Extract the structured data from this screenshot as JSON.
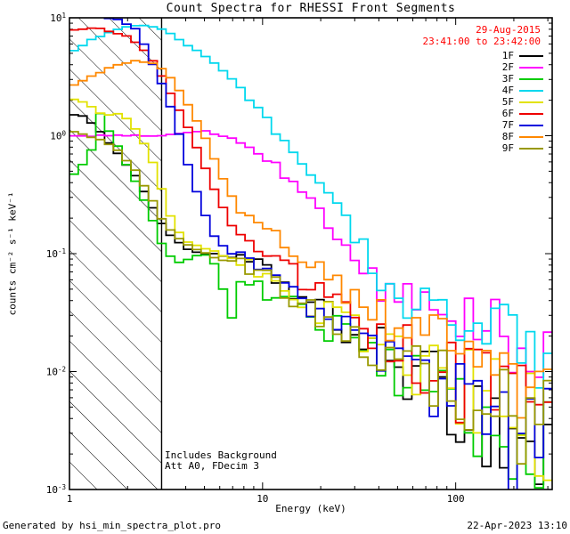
{
  "title": "Count Spectra for RHESSI Front Segments",
  "annotations": {
    "date": "29-Aug-2015",
    "time_range": "23:41:00 to 23:42:00",
    "note1": "Includes Background",
    "note2": "Att A0, FDecim 3",
    "color": "#ff0000"
  },
  "footer": {
    "left": "Generated by hsi_min_spectra_plot.pro",
    "right": "22-Apr-2023 13:10"
  },
  "chart_data": {
    "type": "line",
    "subtype": "step-histogram-spectra",
    "x_scale": "log",
    "y_scale": "log",
    "title": "Count Spectra for RHESSI Front Segments",
    "xlabel": "Energy (keV)",
    "ylabel": "counts cm⁻² s⁻¹ keV⁻¹",
    "xlim": [
      1,
      316
    ],
    "ylim": [
      0.001,
      10
    ],
    "grid": false,
    "legend_position": "top-right",
    "x_ticks": [
      {
        "value": 1,
        "label": "1"
      },
      {
        "value": 10,
        "label": "10"
      },
      {
        "value": 100,
        "label": "100"
      }
    ],
    "y_ticks": [
      {
        "value": 10,
        "mantissa": "10",
        "exp": "1"
      },
      {
        "value": 1,
        "mantissa": "10",
        "exp": "0"
      },
      {
        "value": 0.1,
        "mantissa": "10",
        "exp": "-1"
      },
      {
        "value": 0.01,
        "mantissa": "10",
        "exp": "-2"
      },
      {
        "value": 0.001,
        "mantissa": "10",
        "exp": "-3"
      }
    ],
    "hatch_region": {
      "x_min": 1,
      "x_max": 3
    },
    "noise": {
      "bins_per_decade": 22,
      "smooth_below_keV": 7,
      "dex_smooth": 0.02,
      "dex_start": 0.08,
      "dex_end": 0.45
    },
    "series": [
      {
        "name": "1F",
        "color": "#000000",
        "anchors": [
          [
            1,
            1.55
          ],
          [
            1.2,
            1.45
          ],
          [
            1.5,
            1.0
          ],
          [
            1.8,
            0.7
          ],
          [
            2.2,
            0.45
          ],
          [
            2.6,
            0.28
          ],
          [
            3,
            0.18
          ],
          [
            3.5,
            0.13
          ],
          [
            4,
            0.11
          ],
          [
            5,
            0.1
          ],
          [
            6,
            0.1
          ],
          [
            7,
            0.09
          ],
          [
            8,
            0.09
          ],
          [
            10,
            0.075
          ],
          [
            12,
            0.06
          ],
          [
            15,
            0.045
          ],
          [
            20,
            0.032
          ],
          [
            30,
            0.02
          ],
          [
            50,
            0.012
          ],
          [
            80,
            0.007
          ],
          [
            120,
            0.0045
          ],
          [
            200,
            0.003
          ],
          [
            300,
            0.0018
          ]
        ]
      },
      {
        "name": "2F",
        "color": "#ff00ff",
        "anchors": [
          [
            1,
            1.0
          ],
          [
            2,
            1.0
          ],
          [
            3,
            1.0
          ],
          [
            4,
            1.05
          ],
          [
            5,
            1.1
          ],
          [
            6,
            1.0
          ],
          [
            7,
            0.95
          ],
          [
            8,
            0.85
          ],
          [
            10,
            0.68
          ],
          [
            12,
            0.52
          ],
          [
            15,
            0.38
          ],
          [
            20,
            0.23
          ],
          [
            25,
            0.15
          ],
          [
            30,
            0.095
          ],
          [
            35,
            0.07
          ],
          [
            40,
            0.055
          ],
          [
            50,
            0.042
          ],
          [
            60,
            0.04
          ],
          [
            80,
            0.036
          ],
          [
            100,
            0.032
          ],
          [
            150,
            0.024
          ],
          [
            200,
            0.015
          ],
          [
            300,
            0.008
          ]
        ]
      },
      {
        "name": "3F",
        "color": "#00cc00",
        "anchors": [
          [
            1,
            0.42
          ],
          [
            1.15,
            0.55
          ],
          [
            1.3,
            0.75
          ],
          [
            1.45,
            1.6
          ],
          [
            1.6,
            1.1
          ],
          [
            1.8,
            0.8
          ],
          [
            2,
            0.55
          ],
          [
            2.3,
            0.35
          ],
          [
            2.6,
            0.22
          ],
          [
            2.9,
            0.14
          ],
          [
            3.2,
            0.1
          ],
          [
            3.6,
            0.085
          ],
          [
            4,
            0.09
          ],
          [
            5,
            0.1
          ],
          [
            6,
            0.075
          ],
          [
            6.5,
            0.035
          ],
          [
            7,
            0.028
          ],
          [
            7.5,
            0.05
          ],
          [
            8,
            0.055
          ],
          [
            10,
            0.05
          ],
          [
            12,
            0.042
          ],
          [
            15,
            0.035
          ],
          [
            20,
            0.026
          ],
          [
            30,
            0.017
          ],
          [
            50,
            0.01
          ],
          [
            80,
            0.0065
          ],
          [
            120,
            0.005
          ],
          [
            200,
            0.0035
          ],
          [
            300,
            0.0022
          ]
        ]
      },
      {
        "name": "4F",
        "color": "#00d8ee",
        "anchors": [
          [
            1,
            5.0
          ],
          [
            1.3,
            6.5
          ],
          [
            1.7,
            7.8
          ],
          [
            2,
            8.5
          ],
          [
            2.5,
            8.6
          ],
          [
            3,
            8.0
          ],
          [
            3.5,
            7.0
          ],
          [
            4,
            6.0
          ],
          [
            5,
            4.8
          ],
          [
            6,
            3.8
          ],
          [
            7,
            3.0
          ],
          [
            8,
            2.4
          ],
          [
            10,
            1.5
          ],
          [
            12,
            1.0
          ],
          [
            15,
            0.65
          ],
          [
            20,
            0.35
          ],
          [
            25,
            0.22
          ],
          [
            30,
            0.14
          ],
          [
            40,
            0.062
          ],
          [
            50,
            0.042
          ],
          [
            70,
            0.036
          ],
          [
            100,
            0.032
          ],
          [
            150,
            0.028
          ],
          [
            200,
            0.02
          ],
          [
            300,
            0.011
          ]
        ]
      },
      {
        "name": "5F",
        "color": "#e2e200",
        "anchors": [
          [
            1,
            2.1
          ],
          [
            1.2,
            1.9
          ],
          [
            1.5,
            1.5
          ],
          [
            1.8,
            1.55
          ],
          [
            2.1,
            1.3
          ],
          [
            2.4,
            0.9
          ],
          [
            2.7,
            0.6
          ],
          [
            3,
            0.35
          ],
          [
            3.3,
            0.22
          ],
          [
            3.6,
            0.16
          ],
          [
            4,
            0.13
          ],
          [
            4.5,
            0.12
          ],
          [
            5,
            0.11
          ],
          [
            6,
            0.1
          ],
          [
            8,
            0.085
          ],
          [
            10,
            0.07
          ],
          [
            12,
            0.058
          ],
          [
            15,
            0.045
          ],
          [
            20,
            0.033
          ],
          [
            30,
            0.021
          ],
          [
            50,
            0.013
          ],
          [
            80,
            0.009
          ],
          [
            120,
            0.0065
          ],
          [
            200,
            0.0045
          ],
          [
            300,
            0.003
          ]
        ]
      },
      {
        "name": "6F",
        "color": "#ee0000",
        "anchors": [
          [
            1,
            7.8
          ],
          [
            1.4,
            8.2
          ],
          [
            2,
            7.0
          ],
          [
            2.4,
            5.5
          ],
          [
            2.8,
            4.0
          ],
          [
            3.2,
            2.6
          ],
          [
            3.6,
            1.8
          ],
          [
            4,
            1.3
          ],
          [
            4.5,
            0.85
          ],
          [
            5,
            0.55
          ],
          [
            5.5,
            0.38
          ],
          [
            6,
            0.28
          ],
          [
            7,
            0.17
          ],
          [
            8,
            0.14
          ],
          [
            10,
            0.11
          ],
          [
            12,
            0.09
          ],
          [
            15,
            0.065
          ],
          [
            20,
            0.045
          ],
          [
            30,
            0.028
          ],
          [
            50,
            0.016
          ],
          [
            80,
            0.01
          ],
          [
            120,
            0.007
          ],
          [
            200,
            0.0045
          ],
          [
            300,
            0.003
          ]
        ]
      },
      {
        "name": "7F",
        "color": "#0000dd",
        "anchors": [
          [
            1,
            11
          ],
          [
            1.8,
            9.6
          ],
          [
            2.2,
            8.0
          ],
          [
            2.5,
            5.5
          ],
          [
            2.8,
            3.5
          ],
          [
            3.2,
            2.2
          ],
          [
            3.6,
            1.2
          ],
          [
            4,
            0.65
          ],
          [
            4.5,
            0.35
          ],
          [
            5,
            0.22
          ],
          [
            5.5,
            0.15
          ],
          [
            6,
            0.12
          ],
          [
            7,
            0.1
          ],
          [
            8,
            0.1
          ],
          [
            10,
            0.08
          ],
          [
            12,
            0.06
          ],
          [
            15,
            0.045
          ],
          [
            20,
            0.033
          ],
          [
            30,
            0.022
          ],
          [
            50,
            0.013
          ],
          [
            80,
            0.008
          ],
          [
            120,
            0.005
          ],
          [
            200,
            0.003
          ],
          [
            300,
            0.0018
          ]
        ]
      },
      {
        "name": "8F",
        "color": "#ff8800",
        "anchors": [
          [
            1,
            2.6
          ],
          [
            1.3,
            3.2
          ],
          [
            1.7,
            3.9
          ],
          [
            2.2,
            4.3
          ],
          [
            2.8,
            4.1
          ],
          [
            3.2,
            3.4
          ],
          [
            3.6,
            2.6
          ],
          [
            4,
            2.0
          ],
          [
            4.5,
            1.4
          ],
          [
            5,
            1.0
          ],
          [
            5.5,
            0.7
          ],
          [
            6,
            0.5
          ],
          [
            7,
            0.3
          ],
          [
            8,
            0.22
          ],
          [
            10,
            0.18
          ],
          [
            12,
            0.14
          ],
          [
            15,
            0.1
          ],
          [
            20,
            0.07
          ],
          [
            30,
            0.042
          ],
          [
            50,
            0.025
          ],
          [
            80,
            0.016
          ],
          [
            120,
            0.011
          ],
          [
            200,
            0.007
          ],
          [
            300,
            0.0045
          ]
        ]
      },
      {
        "name": "9F",
        "color": "#999900",
        "anchors": [
          [
            1,
            1.1
          ],
          [
            1.4,
            0.95
          ],
          [
            1.8,
            0.75
          ],
          [
            2.2,
            0.5
          ],
          [
            2.6,
            0.32
          ],
          [
            3,
            0.2
          ],
          [
            3.5,
            0.14
          ],
          [
            4,
            0.12
          ],
          [
            5,
            0.1
          ],
          [
            6,
            0.09
          ],
          [
            8,
            0.08
          ],
          [
            10,
            0.065
          ],
          [
            12,
            0.055
          ],
          [
            15,
            0.042
          ],
          [
            20,
            0.03
          ],
          [
            30,
            0.019
          ],
          [
            50,
            0.012
          ],
          [
            80,
            0.0075
          ],
          [
            120,
            0.0055
          ],
          [
            200,
            0.0035
          ],
          [
            300,
            0.0022
          ]
        ]
      }
    ]
  }
}
